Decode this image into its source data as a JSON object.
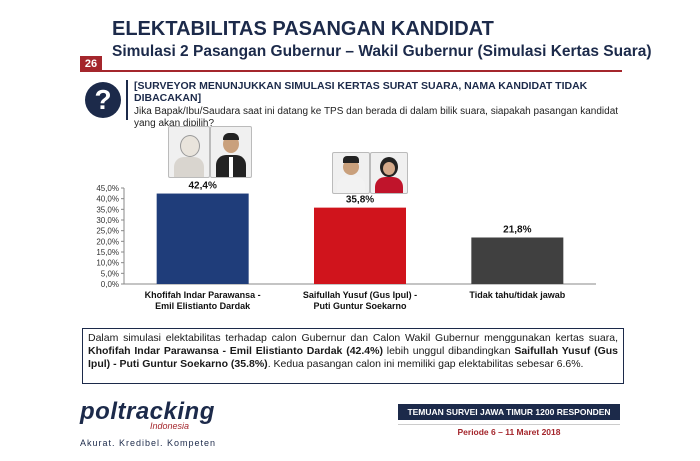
{
  "header": {
    "title": "ELEKTABILITAS PASANGAN KANDIDAT",
    "subtitle": "Simulasi 2 Pasangan Gubernur – Wakil Gubernur (Simulasi Kertas Suara)",
    "page_number": "26"
  },
  "question": {
    "icon": "?",
    "heading": "[SURVEYOR MENUNJUKKAN SIMULASI KERTAS SURAT SUARA, NAMA KANDIDAT TIDAK DIBACAKAN]",
    "text": "Jika Bapak/Ibu/Saudara saat ini datang ke TPS dan berada di dalam bilik suara, siapakah pasangan kandidat yang akan dipilih?"
  },
  "chart_data": {
    "type": "bar",
    "categories": [
      "Khofifah Indar Parawansa - Emil Elistianto Dardak",
      "Saifullah Yusuf (Gus Ipul) - Puti Guntur Soekarno",
      "Tidak tahu/tidak jawab"
    ],
    "values": [
      42.4,
      35.8,
      21.8
    ],
    "value_labels": [
      "42,4%",
      "35,8%",
      "21,8%"
    ],
    "colors": [
      "#1f3d7a",
      "#d0141c",
      "#404040"
    ],
    "ylim": [
      0,
      45
    ],
    "yticks": [
      "0,0%",
      "5,0%",
      "10,0%",
      "15,0%",
      "20,0%",
      "25,0%",
      "30,0%",
      "35,0%",
      "40,0%",
      "45,0%"
    ],
    "grid": false
  },
  "summary": {
    "part1": "Dalam simulasi elektabilitas terhadap calon Gubernur dan Calon Wakil Gubernur menggunakan kertas suara, ",
    "bold1": "Khofifah Indar Parawansa - Emil Elistianto Dardak (42.4%)",
    "part2": " lebih unggul dibandingkan ",
    "bold2": "Saifullah Yusuf (Gus Ipul) - Puti Guntur Soekarno (35.8%)",
    "part3": ". Kedua pasangan calon ini memiliki gap elektabilitas sebesar 6.6%."
  },
  "footer": {
    "logo_name": "poltracking",
    "logo_sub": "Indonesia",
    "tagline": "Akurat. Kredibel. Kompeten",
    "survey_label": "TEMUAN SURVEI JAWA TIMUR 1200 RESPONDEN",
    "period": "Periode 6 – 11 Maret 2018"
  }
}
